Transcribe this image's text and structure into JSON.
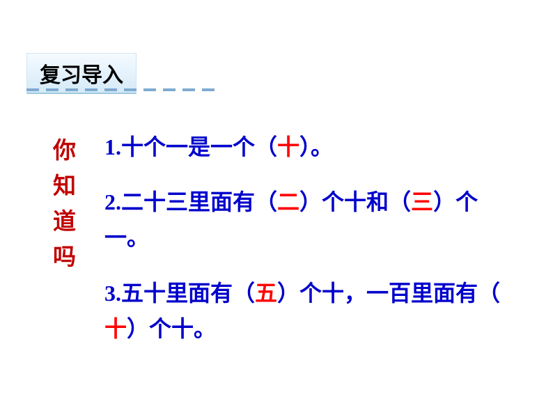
{
  "header": {
    "title": "复习导入"
  },
  "sidebar": {
    "chars": [
      "你",
      "知",
      "道",
      "吗"
    ]
  },
  "items": [
    {
      "pre": "1.十个一是一个（",
      "ans": "十",
      "post": "）。"
    },
    {
      "pre": "2.二十三里面有（",
      "ans1": "二",
      "mid": "）个十和（",
      "ans2": "三",
      "post": "）个一。"
    },
    {
      "pre": "3.五十里面有（",
      "ans1": "五",
      "mid": "）个十，一百里面有（",
      "ans2": "十",
      "post": "）个十。"
    }
  ],
  "colors": {
    "question": "#0000cc",
    "answer": "#ff0000",
    "label": "#c00000",
    "dash": "#7faad0"
  }
}
